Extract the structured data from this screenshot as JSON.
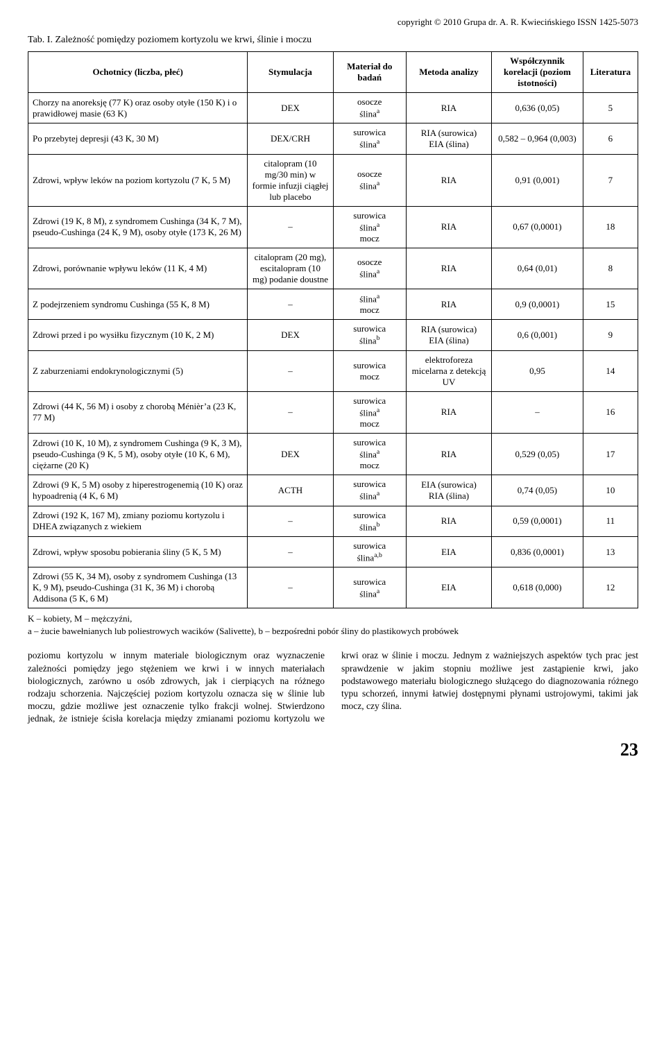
{
  "copyright": "copyright © 2010 Grupa dr. A. R. Kwiecińskiego ISSN 1425-5073",
  "caption": "Tab. I. Zależność pomiędzy poziomem kortyzolu we krwi, ślinie i moczu",
  "headers": {
    "c1": "Ochotnicy (liczba, płeć)",
    "c2": "Stymulacja",
    "c3": "Materiał do badań",
    "c4": "Metoda analizy",
    "c5": "Współczynnik korelacji (poziom istotności)",
    "c6": "Literatura"
  },
  "rows": [
    {
      "p": "Chorzy na anoreksję (77 K) oraz osoby otyłe (150 K) i o prawidłowej masie (63 K)",
      "s": "DEX",
      "m": "osocze<br>ślina<sup>a</sup>",
      "a": "RIA",
      "k": "0,636 (0,05)",
      "l": "5"
    },
    {
      "p": "Po przebytej depresji (43 K, 30 M)",
      "s": "DEX/CRH",
      "m": "surowica<br>ślina<sup>a</sup>",
      "a": "RIA (surowica)<br>EIA (ślina)",
      "k": "0,582 – 0,964 (0,003)",
      "l": "6"
    },
    {
      "p": "Zdrowi, wpływ leków na poziom kortyzolu (7 K, 5 M)",
      "s": "citalopram (10 mg/30 min) w formie infuzji ciągłej lub placebo",
      "m": "osocze<br>ślina<sup>a</sup>",
      "a": "RIA",
      "k": "0,91 (0,001)",
      "l": "7"
    },
    {
      "p": "Zdrowi (19 K, 8 M), z syndromem Cushinga (34 K, 7 M), pseudo-Cushinga (24 K, 9 M), osoby otyłe (173 K, 26 M)",
      "s": "–",
      "m": "surowica<br>ślina<sup>a</sup><br>mocz",
      "a": "RIA",
      "k": "0,67 (0,0001)",
      "l": "18"
    },
    {
      "p": "Zdrowi, porównanie wpływu leków (11 K, 4 M)",
      "s": "citalopram (20 mg), escitalopram (10 mg) podanie doustne",
      "m": "osocze<br>ślina<sup>a</sup>",
      "a": "RIA",
      "k": "0,64 (0,01)",
      "l": "8"
    },
    {
      "p": "Z podejrzeniem syndromu Cushinga (55 K, 8 M)",
      "s": "–",
      "m": "ślina<sup>a</sup><br>mocz",
      "a": "RIA",
      "k": "0,9 (0,0001)",
      "l": "15"
    },
    {
      "p": "Zdrowi przed i po wysiłku fizycznym (10 K, 2 M)",
      "s": "DEX",
      "m": "surowica<br>ślina<sup>b</sup>",
      "a": "RIA (surowica)<br>EIA (ślina)",
      "k": "0,6 (0,001)",
      "l": "9"
    },
    {
      "p": "Z zaburzeniami endokrynologicznymi (5)",
      "s": "–",
      "m": "surowica<br>mocz",
      "a": "elektroforeza micelarna z detekcją UV",
      "k": "0,95",
      "l": "14"
    },
    {
      "p": "Zdrowi (44 K, 56 M) i osoby z chorobą Ménièr’a (23 K, 77 M)",
      "s": "–",
      "m": "surowica<br>ślina<sup>a</sup><br>mocz",
      "a": "RIA",
      "k": "–",
      "l": "16"
    },
    {
      "p": "Zdrowi (10 K, 10 M), z syndromem Cushinga (9 K, 3 M), pseudo-Cushinga (9 K, 5 M), osoby otyłe (10 K, 6 M), ciężarne (20 K)",
      "s": "DEX",
      "m": "surowica<br>ślina<sup>a</sup><br>mocz",
      "a": "RIA",
      "k": "0,529 (0,05)",
      "l": "17"
    },
    {
      "p": "Zdrowi (9 K, 5 M) osoby z hiperestrogenemią (10 K) oraz hypoadrenią (4 K, 6 M)",
      "s": "ACTH",
      "m": "surowica<br>ślina<sup>a</sup>",
      "a": "EIA (surowica)<br>RIA (ślina)",
      "k": "0,74 (0,05)",
      "l": "10"
    },
    {
      "p": "Zdrowi (192 K, 167 M), zmiany poziomu kortyzolu i DHEA związanych z wiekiem",
      "s": "–",
      "m": "surowica<br>ślina<sup>b</sup>",
      "a": "RIA",
      "k": "0,59 (0,0001)",
      "l": "11"
    },
    {
      "p": "Zdrowi, wpływ sposobu pobierania śliny (5 K, 5 M)",
      "s": "–",
      "m": "surowica<br>ślina<sup>a,b</sup>",
      "a": "EIA",
      "k": "0,836 (0,0001)",
      "l": "13"
    },
    {
      "p": "Zdrowi (55 K, 34 M), osoby z syndromem Cushinga (13 K, 9 M), pseudo-Cushinga (31 K, 36 M) i chorobą Addisona (5 K, 6 M)",
      "s": "–",
      "m": "surowica<br>ślina<sup>a</sup>",
      "a": "EIA",
      "k": "0,618 (0,000)",
      "l": "12"
    }
  ],
  "footnote": "K – kobiety, M – mężczyźni,<br>a – żucie bawełnianych lub poliestrowych wacików (Salivette), b – bezpośredni pobór śliny do plastikowych probówek",
  "body": "poziomu kortyzolu w innym materiale biologicznym oraz wyznaczenie zależności pomiędzy jego stężeniem we krwi i w innych materiałach biologicznych, zarówno u osób zdrowych, jak i cierpiących na różnego rodzaju schorzenia. Najczęściej poziom kortyzolu oznacza się w ślinie lub moczu, gdzie możliwe jest oznaczenie tylko frakcji wolnej. Stwierdzono jednak, że istnieje ścisła korelacja między zmianami poziomu kortyzolu we krwi oraz w ślinie i moczu. Jednym z ważniejszych aspektów tych prac jest sprawdzenie w jakim stopniu możliwe jest zastąpienie krwi, jako podstawowego materiału biologicznego służącego do diagnozowania różnego typu schorzeń, innymi łatwiej dostępnymi płynami ustrojowymi, takimi jak mocz, czy ślina.",
  "page": "23",
  "style": {
    "font_family": "Times New Roman",
    "body_fontsize_pt": 10,
    "table_fontsize_pt": 9.5,
    "pagenum_fontsize_pt": 20,
    "text_color": "#000000",
    "background_color": "#ffffff",
    "border_color": "#000000",
    "column_widths_pct": [
      36,
      14,
      12,
      14,
      15,
      9
    ]
  }
}
